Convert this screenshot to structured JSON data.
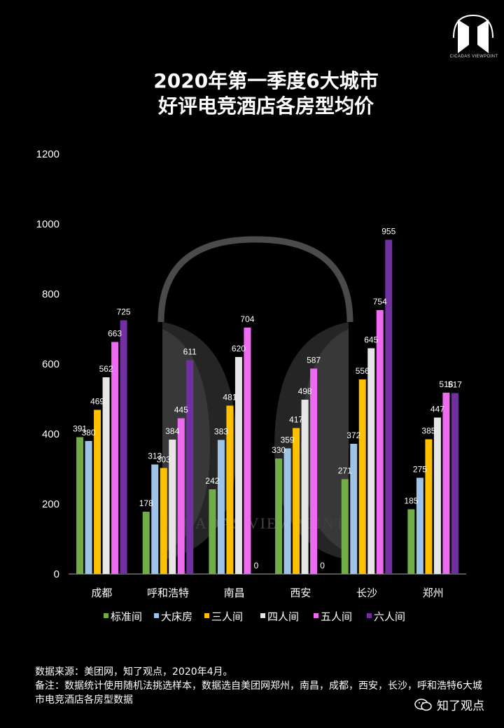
{
  "brand_logo_text": "CICADAS VIEWPOINT",
  "title_line1": "2020年第一季度6大城市",
  "title_line2": "好评电竞酒店各房型均价",
  "watermark_text": "CICADAS VIEWPOINT",
  "footer": {
    "source": "数据来源：美团网，知了观点，2020年4月。",
    "note": "备注：数据统计使用随机法挑选样本，数据选自美团网郑州，南昌，成都，西安，长沙，呼和浩特6大城市电竞酒店各房型数据"
  },
  "brand_name": "知了观点",
  "chart_data": {
    "type": "bar",
    "categories": [
      "成都",
      "呼和浩特",
      "南昌",
      "西安",
      "长沙",
      "郑州"
    ],
    "series": [
      {
        "name": "标准间",
        "color": "#70AD47",
        "values": [
          391,
          178,
          242,
          330,
          271,
          185
        ]
      },
      {
        "name": "大床房",
        "color": "#9DC3E6",
        "values": [
          380,
          313,
          383,
          359,
          372,
          275
        ]
      },
      {
        "name": "三人间",
        "color": "#FFC000",
        "values": [
          469,
          303,
          481,
          417,
          556,
          385
        ]
      },
      {
        "name": "四人间",
        "color": "#E7E6E6",
        "values": [
          562,
          384,
          620,
          498,
          645,
          447
        ]
      },
      {
        "name": "五人间",
        "color": "#EE6AF0",
        "values": [
          663,
          445,
          704,
          587,
          754,
          518
        ]
      },
      {
        "name": "六人间",
        "color": "#7030A0",
        "values": [
          725,
          611,
          0,
          0,
          955,
          517
        ]
      }
    ],
    "ylim": [
      0,
      1200
    ],
    "yticks": [
      "0",
      "200",
      "400",
      "600",
      "800",
      "1000",
      "1200"
    ],
    "legend_position": "bottom",
    "grid": false
  }
}
